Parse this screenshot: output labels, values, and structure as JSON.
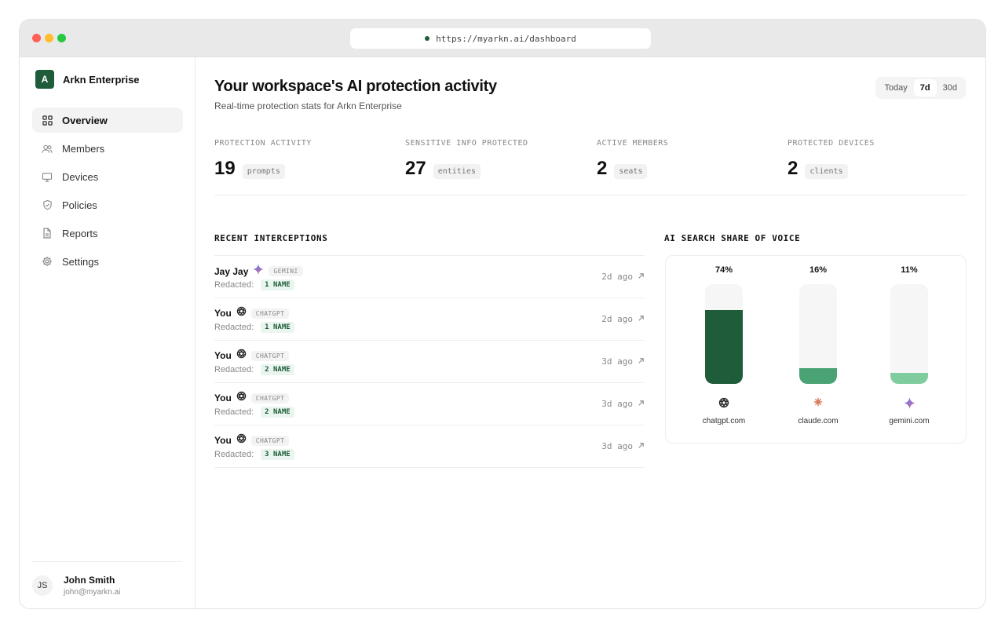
{
  "browser": {
    "url": "https://myarkn.ai/dashboard"
  },
  "sidebar": {
    "brand": {
      "logo_letter": "A",
      "name": "Arkn Enterprise"
    },
    "items": [
      {
        "label": "Overview",
        "icon": "grid-icon",
        "active": true
      },
      {
        "label": "Members",
        "icon": "users-icon",
        "active": false
      },
      {
        "label": "Devices",
        "icon": "monitor-icon",
        "active": false
      },
      {
        "label": "Policies",
        "icon": "shield-icon",
        "active": false
      },
      {
        "label": "Reports",
        "icon": "document-icon",
        "active": false
      },
      {
        "label": "Settings",
        "icon": "gear-icon",
        "active": false
      }
    ],
    "user": {
      "initials": "JS",
      "name": "John Smith",
      "email": "john@myarkn.ai"
    }
  },
  "header": {
    "title": "Your workspace's AI protection activity",
    "subtitle": "Real-time protection stats for Arkn Enterprise",
    "range_options": [
      "Today",
      "7d",
      "30d"
    ],
    "range_selected": "7d"
  },
  "stats": [
    {
      "label": "PROTECTION ACTIVITY",
      "value": "19",
      "unit": "prompts"
    },
    {
      "label": "SENSITIVE INFO PROTECTED",
      "value": "27",
      "unit": "entities"
    },
    {
      "label": "ACTIVE MEMBERS",
      "value": "2",
      "unit": "seats"
    },
    {
      "label": "PROTECTED DEVICES",
      "value": "2",
      "unit": "clients"
    }
  ],
  "interceptions": {
    "title": "RECENT INTERCEPTIONS",
    "redacted_label": "Redacted:",
    "rows": [
      {
        "user": "Jay Jay",
        "source": "GEMINI",
        "source_icon": "gemini-icon",
        "redacted": "1 NAME",
        "time": "2d ago"
      },
      {
        "user": "You",
        "source": "CHATGPT",
        "source_icon": "chatgpt-icon",
        "redacted": "1 NAME",
        "time": "2d ago"
      },
      {
        "user": "You",
        "source": "CHATGPT",
        "source_icon": "chatgpt-icon",
        "redacted": "2 NAME",
        "time": "3d ago"
      },
      {
        "user": "You",
        "source": "CHATGPT",
        "source_icon": "chatgpt-icon",
        "redacted": "2 NAME",
        "time": "3d ago"
      },
      {
        "user": "You",
        "source": "CHATGPT",
        "source_icon": "chatgpt-icon",
        "redacted": "3 NAME",
        "time": "3d ago"
      }
    ]
  },
  "share_of_voice": {
    "title": "AI SEARCH SHARE OF VOICE",
    "bars": [
      {
        "label": "chatgpt.com",
        "percent_label": "74%",
        "icon": "chatgpt-icon",
        "color": "#1e5c3a"
      },
      {
        "label": "claude.com",
        "percent_label": "16%",
        "icon": "claude-icon",
        "color": "#4aa374"
      },
      {
        "label": "gemini.com",
        "percent_label": "11%",
        "icon": "gemini-icon",
        "color": "#7fcc9f"
      }
    ]
  },
  "chart_data": {
    "type": "bar",
    "categories": [
      "chatgpt.com",
      "claude.com",
      "gemini.com"
    ],
    "values": [
      74,
      16,
      11
    ],
    "title": "AI SEARCH SHARE OF VOICE",
    "ylim": [
      0,
      100
    ]
  },
  "colors": {
    "accent": "#1e5c3a",
    "accent_light": "#e9f5ee"
  }
}
